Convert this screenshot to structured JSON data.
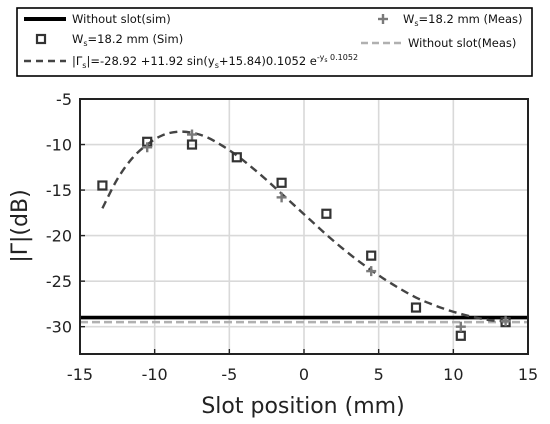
{
  "chart_data": {
    "type": "line",
    "title": "",
    "xlabel": "Slot position (mm)",
    "ylabel": "|Γ|(dB)",
    "xlim": [
      -15,
      15
    ],
    "ylim": [
      -33,
      -5
    ],
    "xticks": [
      -15,
      -10,
      -5,
      0,
      5,
      10,
      15
    ],
    "yticks": [
      -5,
      -10,
      -15,
      -20,
      -25,
      -30
    ],
    "grid": true,
    "legend_position": "top (outside, above plot)",
    "series": [
      {
        "name": "Without slot(sim)",
        "style": "solid-line",
        "color": "#000000",
        "x": [
          -14,
          14
        ],
        "y": [
          -29,
          -29
        ]
      },
      {
        "name": "Ws=18.2 mm (Sim)",
        "style": "square-markers",
        "color": "#333333",
        "x": [
          -13.5,
          -10.5,
          -7.5,
          -4.5,
          -1.5,
          1.5,
          4.5,
          7.5,
          10.5,
          13.5
        ],
        "y": [
          -14.5,
          -9.7,
          -10.0,
          -11.4,
          -14.2,
          -17.6,
          -22.2,
          -27.9,
          -31.0,
          -29.5
        ]
      },
      {
        "name": "|Γs|=-28.92 +11.92 sin(ys+15.84)0.1052 e^-ys^0.1052",
        "style": "dashed-curve",
        "color": "#444444",
        "x": [
          -13.5,
          -12.5,
          -11.5,
          -10.5,
          -9.5,
          -8.5,
          -7.5,
          -6.5,
          -5.5,
          -4.5,
          -3.5,
          -2.5,
          -1.5,
          -0.5,
          0.5,
          1.5,
          2.5,
          3.5,
          4.5,
          5.5,
          6.5,
          7.5,
          8.5,
          9.5,
          10.5,
          11.5,
          12.5,
          13.5
        ],
        "y": [
          -17.0,
          -13.8,
          -11.5,
          -10.0,
          -9.0,
          -8.6,
          -8.7,
          -9.2,
          -10.1,
          -11.2,
          -12.5,
          -13.9,
          -15.4,
          -16.9,
          -18.4,
          -19.9,
          -21.3,
          -22.6,
          -23.8,
          -24.9,
          -25.9,
          -26.8,
          -27.5,
          -28.1,
          -28.6,
          -29.0,
          -29.3,
          -29.4
        ]
      },
      {
        "name": "Ws=18.2 mm (Meas)",
        "style": "plus-markers",
        "color": "#7a7a7a",
        "x": [
          -10.5,
          -7.5,
          -1.5,
          4.5,
          10.5,
          13.5
        ],
        "y": [
          -10.3,
          -8.9,
          -15.8,
          -23.9,
          -30.0,
          -29.4
        ]
      },
      {
        "name": "Without slot(Meas)",
        "style": "dashed-line",
        "color": "#b0b0b0",
        "x": [
          -14,
          14
        ],
        "y": [
          -29.5,
          -29.5
        ]
      }
    ]
  }
}
